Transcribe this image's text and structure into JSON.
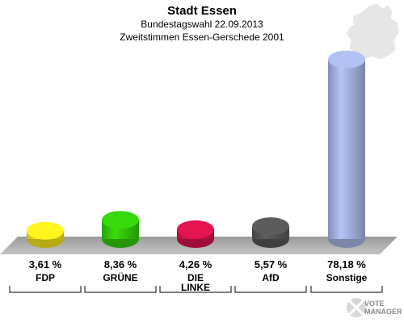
{
  "header": {
    "title": "Stadt Essen",
    "subtitle": "Bundestagswahl 22.09.2013",
    "subtitle2": "Zweitstimmen Essen-Gerschede 2001"
  },
  "chart_data": {
    "type": "bar",
    "title": "Stadt Essen",
    "subtitle": "Bundestagswahl 22.09.2013 / Zweitstimmen Essen-Gerschede 2001",
    "xlabel": "",
    "ylabel": "",
    "categories": [
      "FDP",
      "GRÜNE",
      "DIE LINKE",
      "AfD",
      "Sonstige"
    ],
    "values": [
      3.61,
      8.36,
      4.26,
      5.57,
      78.18
    ],
    "value_labels": [
      "3,61 %",
      "8,36 %",
      "4,26 %",
      "5,57 %",
      "78,18 %"
    ],
    "colors": [
      "#f2e21c",
      "#33c90a",
      "#d4134b",
      "#555555",
      "#a3b3e0"
    ],
    "grid": false,
    "legend": "none"
  },
  "map_icon": "germany-map-icon",
  "logo": {
    "line1": "VOTE",
    "line2": "MANAGER"
  }
}
